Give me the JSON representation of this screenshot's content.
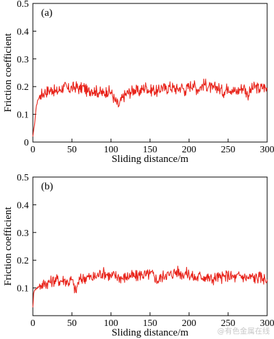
{
  "chart_data": [
    {
      "panel_label": "(a)",
      "type": "line",
      "xlabel": "Sliding distance/m",
      "ylabel": "Friction coefficient",
      "xlim": [
        0,
        300
      ],
      "ylim": [
        0,
        0.5
      ],
      "xticks": [
        0,
        50,
        100,
        150,
        200,
        250,
        300
      ],
      "yticks": [
        0,
        0.1,
        0.2,
        0.3,
        0.4,
        0.5
      ],
      "ytick_labels": [
        "0",
        "0.1",
        "0.2",
        "0.3",
        "0.4",
        "0.5"
      ],
      "line_color": "#e8231a",
      "grid": false,
      "series": [
        {
          "x": [
            0,
            2,
            4,
            6,
            8,
            10,
            15,
            20,
            25,
            30,
            35,
            40,
            45,
            50,
            55,
            60,
            65,
            70,
            75,
            80,
            85,
            90,
            95,
            100,
            105,
            110,
            115,
            120,
            125,
            130,
            135,
            140,
            145,
            150,
            155,
            160,
            165,
            170,
            175,
            180,
            185,
            190,
            195,
            200,
            205,
            210,
            215,
            220,
            225,
            230,
            235,
            240,
            245,
            250,
            255,
            260,
            265,
            270,
            275,
            280,
            285,
            290,
            295,
            300
          ],
          "y": [
            0.02,
            0.06,
            0.12,
            0.15,
            0.16,
            0.17,
            0.18,
            0.185,
            0.19,
            0.18,
            0.19,
            0.2,
            0.19,
            0.195,
            0.2,
            0.19,
            0.2,
            0.18,
            0.19,
            0.185,
            0.18,
            0.175,
            0.185,
            0.18,
            0.15,
            0.13,
            0.16,
            0.175,
            0.18,
            0.19,
            0.18,
            0.19,
            0.2,
            0.185,
            0.19,
            0.18,
            0.2,
            0.19,
            0.2,
            0.195,
            0.19,
            0.2,
            0.185,
            0.2,
            0.21,
            0.19,
            0.2,
            0.21,
            0.2,
            0.19,
            0.2,
            0.19,
            0.18,
            0.2,
            0.19,
            0.18,
            0.19,
            0.2,
            0.17,
            0.19,
            0.2,
            0.19,
            0.2,
            0.19
          ]
        }
      ]
    },
    {
      "panel_label": "(b)",
      "type": "line",
      "xlabel": "Sliding distance/m",
      "ylabel": "Friction coefficient",
      "xlim": [
        0,
        300
      ],
      "ylim": [
        0,
        0.5
      ],
      "xticks": [
        0,
        50,
        100,
        150,
        200,
        250,
        300
      ],
      "yticks": [
        0,
        0.1,
        0.2,
        0.3,
        0.4,
        0.5
      ],
      "ytick_labels": [
        "",
        "0.1",
        "0.2",
        "0.3",
        "0.4",
        "0.5"
      ],
      "line_color": "#e8231a",
      "grid": false,
      "series": [
        {
          "x": [
            0,
            1,
            3,
            5,
            8,
            10,
            15,
            20,
            25,
            30,
            35,
            40,
            45,
            50,
            52,
            55,
            58,
            60,
            65,
            70,
            75,
            80,
            85,
            90,
            95,
            100,
            105,
            110,
            115,
            120,
            125,
            130,
            135,
            140,
            145,
            150,
            155,
            160,
            165,
            170,
            175,
            180,
            185,
            190,
            195,
            200,
            205,
            210,
            215,
            220,
            225,
            230,
            235,
            240,
            245,
            250,
            255,
            260,
            265,
            270,
            275,
            280,
            285,
            290,
            295,
            300
          ],
          "y": [
            0.03,
            0.08,
            0.095,
            0.1,
            0.105,
            0.11,
            0.115,
            0.12,
            0.125,
            0.13,
            0.125,
            0.13,
            0.12,
            0.13,
            0.11,
            0.085,
            0.12,
            0.13,
            0.135,
            0.14,
            0.135,
            0.14,
            0.15,
            0.155,
            0.15,
            0.14,
            0.145,
            0.14,
            0.135,
            0.14,
            0.145,
            0.14,
            0.145,
            0.15,
            0.145,
            0.15,
            0.145,
            0.125,
            0.14,
            0.15,
            0.145,
            0.155,
            0.16,
            0.15,
            0.155,
            0.15,
            0.14,
            0.135,
            0.145,
            0.14,
            0.135,
            0.13,
            0.14,
            0.135,
            0.14,
            0.145,
            0.14,
            0.135,
            0.145,
            0.14,
            0.135,
            0.14,
            0.135,
            0.14,
            0.135,
            0.13
          ]
        }
      ]
    }
  ],
  "watermark": "@有色金属在线"
}
